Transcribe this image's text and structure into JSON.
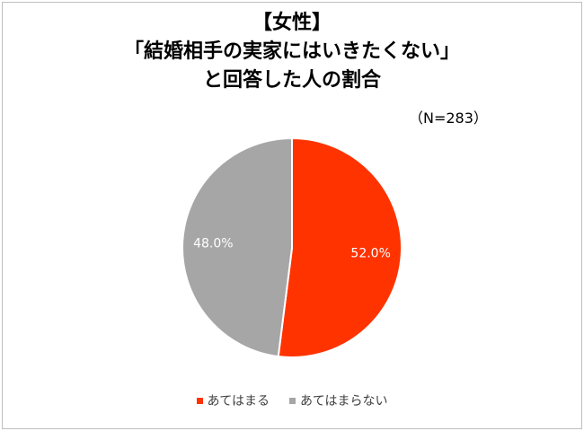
{
  "chart_data": {
    "type": "pie",
    "title_lines": [
      "【女性】",
      "「結婚相手の実家にはいきたくない」",
      "と回答した人の割合"
    ],
    "note": "（N=283）",
    "slices": [
      {
        "label": "あてはまる",
        "value": 52.0,
        "value_label": "52.0%",
        "color": "#ff3300"
      },
      {
        "label": "あてはまらない",
        "value": 48.0,
        "value_label": "48.0%",
        "color": "#a6a6a6"
      }
    ],
    "legend_position": "bottom"
  }
}
